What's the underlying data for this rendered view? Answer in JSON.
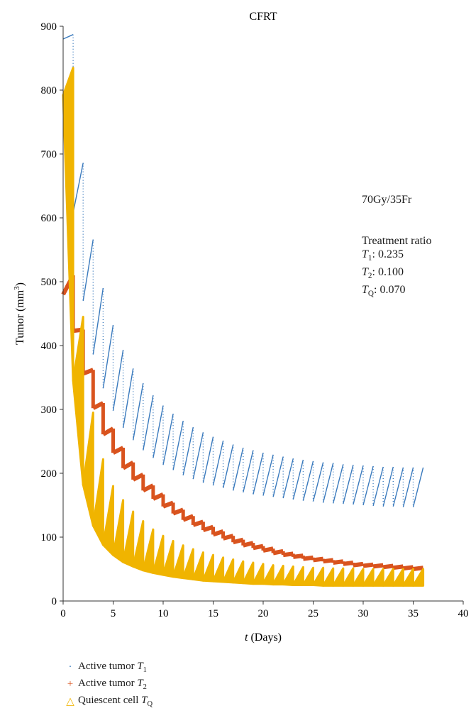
{
  "chart_data": {
    "type": "line",
    "title": "CFRT",
    "xlabel_var": "t",
    "xlabel_rest": " (Days)",
    "ylabel_main": "Tumor (mm",
    "ylabel_sup": "3",
    "ylabel_close": ")",
    "xlim": [
      0,
      40
    ],
    "ylim": [
      0,
      900
    ],
    "x_ticks": [
      0,
      5,
      10,
      15,
      20,
      25,
      30,
      35,
      40
    ],
    "y_ticks": [
      0,
      100,
      200,
      300,
      400,
      500,
      600,
      700,
      800,
      900
    ],
    "grid": false,
    "legend_position": "bottom-left",
    "annotation": {
      "dose": "70Gy/35Fr",
      "heading": "Treatment ratio",
      "lines": [
        {
          "var": "T",
          "sub": "1",
          "value": ": 0.235"
        },
        {
          "var": "T",
          "sub": "2",
          "value": ": 0.100"
        },
        {
          "var": "T",
          "sub": "Q",
          "value": ": 0.070"
        }
      ]
    },
    "series": [
      {
        "name_prefix": "Active tumor ",
        "name_var": "T",
        "name_sub": "1",
        "marker": "·",
        "color": "#3a7abd",
        "peaks": [
          887,
          686,
          566,
          490,
          432,
          393,
          364,
          341,
          322,
          306,
          293,
          282,
          272,
          264,
          257,
          251,
          245,
          240,
          236,
          232,
          229,
          226,
          223,
          221,
          219,
          217,
          216,
          214,
          213,
          212,
          211,
          210,
          210,
          209,
          209,
          209
        ],
        "troughs": [
          880,
          608,
          470,
          386,
          333,
          298,
          271,
          252,
          236,
          224,
          213,
          205,
          197,
          191,
          185,
          181,
          177,
          173,
          170,
          167,
          165,
          163,
          161,
          159,
          157,
          156,
          154,
          153,
          152,
          151,
          150,
          149,
          148,
          148,
          147,
          147
        ]
      },
      {
        "name_prefix": "Active tumor ",
        "name_var": "T",
        "name_sub": "2",
        "marker": "+",
        "color": "#d9531e",
        "peaks": [
          510,
          425,
          362,
          310,
          270,
          240,
          217,
          198,
          181,
          167,
          154,
          143,
          133,
          124,
          116,
          109,
          102,
          96,
          91,
          86,
          82,
          78,
          74,
          71,
          68,
          66,
          64,
          62,
          60,
          58,
          57,
          56,
          55,
          54,
          53,
          52
        ],
        "troughs": [
          480,
          423,
          356,
          302,
          261,
          232,
          208,
          190,
          173,
          160,
          148,
          137,
          127,
          119,
          111,
          104,
          98,
          92,
          87,
          83,
          79,
          75,
          72,
          69,
          66,
          64,
          62,
          60,
          58,
          56,
          55,
          54,
          53,
          52,
          51,
          50
        ]
      },
      {
        "name_prefix": "Quiescent cell ",
        "name_var": "T",
        "name_sub": "Q",
        "marker": "△",
        "color": "#f0b400",
        "peaks": [
          835,
          445,
          295,
          222,
          180,
          158,
          140,
          125,
          112,
          102,
          94,
          87,
          81,
          76,
          72,
          68,
          65,
          62,
          60,
          58,
          56,
          55,
          54,
          53,
          52,
          52,
          51,
          51,
          51,
          50,
          50,
          50,
          50,
          50,
          50,
          50
        ],
        "troughs": [
          792,
          345,
          182,
          118,
          88,
          72,
          61,
          54,
          48,
          44,
          41,
          38,
          36,
          34,
          32,
          31,
          30,
          29,
          28,
          27,
          27,
          26,
          26,
          25,
          25,
          25,
          24,
          24,
          24,
          24,
          24,
          24,
          24,
          24,
          24,
          24
        ]
      }
    ]
  }
}
